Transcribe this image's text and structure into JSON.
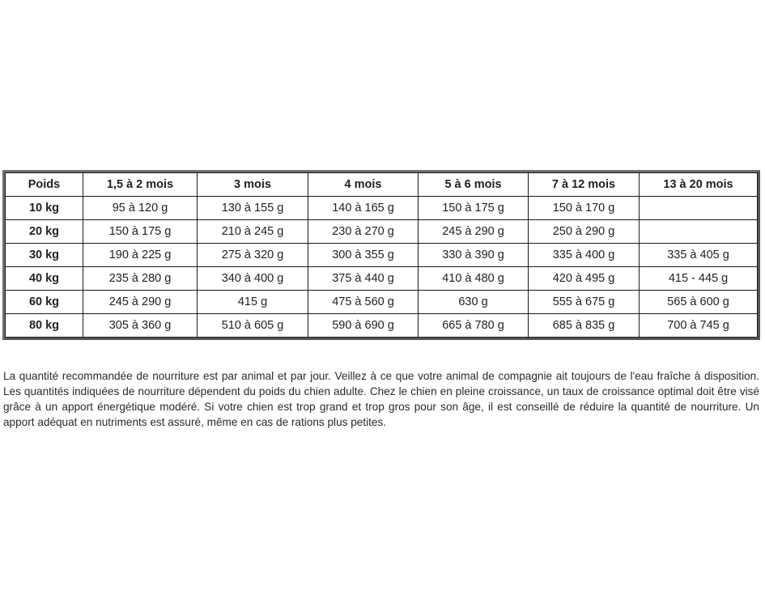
{
  "table": {
    "headers": [
      "Poids",
      "1,5 à 2 mois",
      "3 mois",
      "4 mois",
      "5 à 6 mois",
      "7 à 12 mois",
      "13 à 20 mois"
    ],
    "rows": [
      [
        "10 kg",
        "95 à 120 g",
        "130 à 155 g",
        "140 à 165 g",
        "150 à 175 g",
        "150 à 170 g",
        ""
      ],
      [
        "20 kg",
        "150 à 175 g",
        "210 à 245 g",
        "230 à 270 g",
        "245 à 290 g",
        "250 à 290 g",
        ""
      ],
      [
        "30 kg",
        "190 à 225 g",
        "275 à 320 g",
        "300 à 355 g",
        "330 à 390 g",
        "335 à 400 g",
        "335 à 405 g"
      ],
      [
        "40 kg",
        "235 à 280 g",
        "340 à 400 g",
        "375 à 440 g",
        "410 à 480 g",
        "420 à 495 g",
        "415 - 445 g"
      ],
      [
        "60 kg",
        "245 à 290 g",
        "415 g",
        "475 à 560 g",
        "630 g",
        "555 à 675 g",
        "565 à 600 g"
      ],
      [
        "80 kg",
        "305 à 360 g",
        "510 à 605 g",
        "590 à 690 g",
        "665 à 780 g",
        "685 à 835 g",
        "700 à 745 g"
      ]
    ]
  },
  "note": "La quantité recommandée de nourriture est par animal et par jour. Veillez à ce que votre animal de compagnie ait toujours de l'eau fraîche à disposition. Les quantités indiquées de nourriture dépendent du poids du chien adulte. Chez le chien en pleine croissance, un taux de croissance optimal doit être visé grâce à un apport énergétique modéré. Si votre chien est trop grand et trop gros pour son âge, il est conseillé de réduire la quantité de nourriture. Un apport adéquat en nutriments est assuré, même en cas de rations plus petites."
}
